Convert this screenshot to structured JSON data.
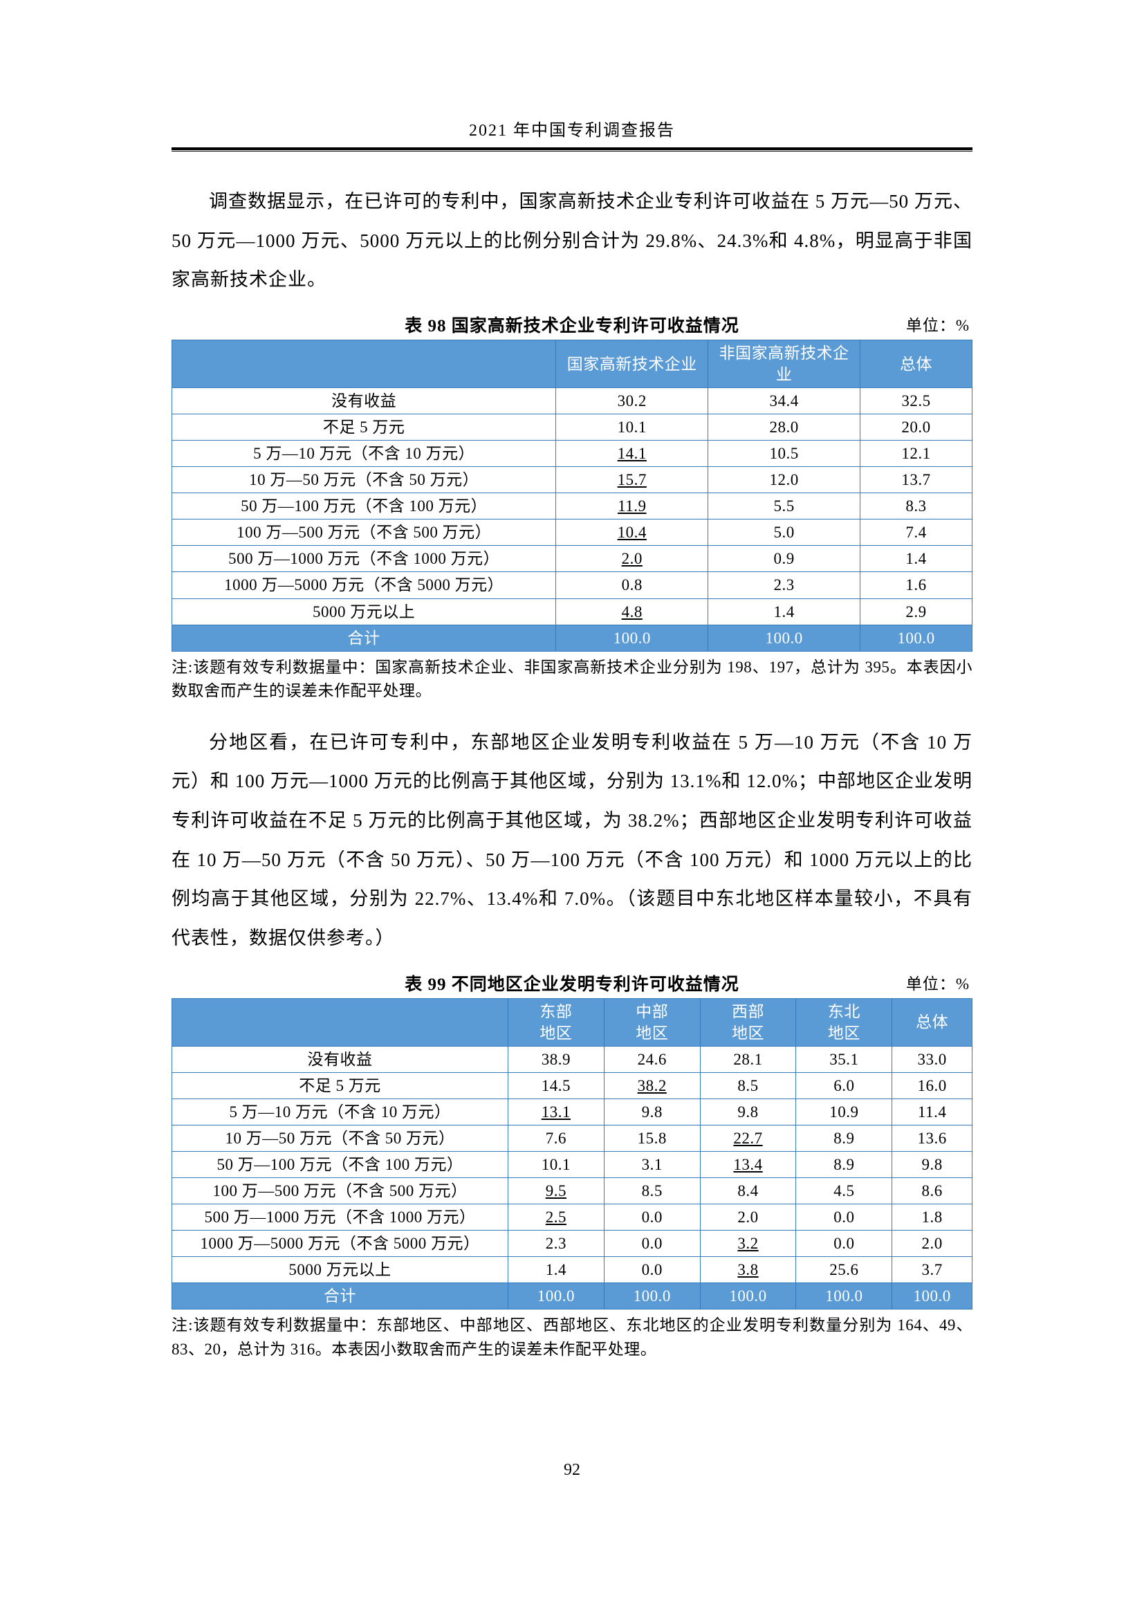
{
  "header": {
    "title": "2021 年中国专利调查报告"
  },
  "para1": "调查数据显示，在已许可的专利中，国家高新技术企业专利许可收益在 5 万元—50 万元、50 万元—1000 万元、5000 万元以上的比例分别合计为 29.8%、24.3%和 4.8%，明显高于非国家高新技术企业。",
  "table98": {
    "caption": "表 98  国家高新技术企业专利许可收益情况",
    "unit": "单位：%",
    "columns": [
      "",
      "国家高新技术企业",
      "非国家高新技术企业",
      "总体"
    ],
    "row_labels": [
      "没有收益",
      "不足 5 万元",
      "5 万—10 万元（不含 10 万元）",
      "10 万—50 万元（不含 50 万元）",
      "50 万—100 万元（不含 100 万元）",
      "100 万—500 万元（不含 500 万元）",
      "500 万—1000 万元（不含 1000 万元）",
      "1000 万—5000 万元（不含 5000 万元）",
      "5000 万元以上",
      "合计"
    ],
    "rows": [
      [
        {
          "v": "30.2"
        },
        {
          "v": "34.4"
        },
        {
          "v": "32.5"
        }
      ],
      [
        {
          "v": "10.1"
        },
        {
          "v": "28.0"
        },
        {
          "v": "20.0"
        }
      ],
      [
        {
          "v": "14.1",
          "u": true
        },
        {
          "v": "10.5"
        },
        {
          "v": "12.1"
        }
      ],
      [
        {
          "v": "15.7",
          "u": true
        },
        {
          "v": "12.0"
        },
        {
          "v": "13.7"
        }
      ],
      [
        {
          "v": "11.9",
          "u": true
        },
        {
          "v": "5.5"
        },
        {
          "v": "8.3"
        }
      ],
      [
        {
          "v": "10.4",
          "u": true
        },
        {
          "v": "5.0"
        },
        {
          "v": "7.4"
        }
      ],
      [
        {
          "v": "2.0",
          "u": true
        },
        {
          "v": "0.9"
        },
        {
          "v": "1.4"
        }
      ],
      [
        {
          "v": "0.8"
        },
        {
          "v": "2.3"
        },
        {
          "v": "1.6"
        }
      ],
      [
        {
          "v": "4.8",
          "u": true
        },
        {
          "v": "1.4"
        },
        {
          "v": "2.9"
        }
      ],
      [
        {
          "v": "100.0"
        },
        {
          "v": "100.0"
        },
        {
          "v": "100.0"
        }
      ]
    ],
    "note": "注:该题有效专利数据量中：国家高新技术企业、非国家高新技术企业分别为 198、197，总计为 395。本表因小数取舍而产生的误差未作配平处理。"
  },
  "para2": "分地区看，在已许可专利中，东部地区企业发明专利收益在 5 万—10 万元（不含 10 万元）和 100 万元—1000 万元的比例高于其他区域，分别为 13.1%和 12.0%；中部地区企业发明专利许可收益在不足 5 万元的比例高于其他区域，为 38.2%；西部地区企业发明专利许可收益在 10 万—50 万元（不含 50 万元）、50 万—100 万元（不含 100 万元）和 1000 万元以上的比例均高于其他区域，分别为 22.7%、13.4%和 7.0%。（该题目中东北地区样本量较小，不具有代表性，数据仅供参考。）",
  "table99": {
    "caption": "表 99  不同地区企业发明专利许可收益情况",
    "unit": "单位：%",
    "columns": [
      "",
      "东部\n地区",
      "中部\n地区",
      "西部\n地区",
      "东北\n地区",
      "总体"
    ],
    "row_labels": [
      "没有收益",
      "不足 5 万元",
      "5 万—10 万元（不含 10 万元）",
      "10 万—50 万元（不含 50 万元）",
      "50 万—100 万元（不含 100 万元）",
      "100 万—500 万元（不含 500 万元）",
      "500 万—1000 万元（不含 1000 万元）",
      "1000 万—5000 万元（不含 5000 万元）",
      "5000 万元以上",
      "合计"
    ],
    "rows": [
      [
        {
          "v": "38.9"
        },
        {
          "v": "24.6"
        },
        {
          "v": "28.1"
        },
        {
          "v": "35.1"
        },
        {
          "v": "33.0"
        }
      ],
      [
        {
          "v": "14.5"
        },
        {
          "v": "38.2",
          "u": true
        },
        {
          "v": "8.5"
        },
        {
          "v": "6.0"
        },
        {
          "v": "16.0"
        }
      ],
      [
        {
          "v": "13.1",
          "u": true
        },
        {
          "v": "9.8"
        },
        {
          "v": "9.8"
        },
        {
          "v": "10.9"
        },
        {
          "v": "11.4"
        }
      ],
      [
        {
          "v": "7.6"
        },
        {
          "v": "15.8"
        },
        {
          "v": "22.7",
          "u": true
        },
        {
          "v": "8.9"
        },
        {
          "v": "13.6"
        }
      ],
      [
        {
          "v": "10.1"
        },
        {
          "v": "3.1"
        },
        {
          "v": "13.4",
          "u": true
        },
        {
          "v": "8.9"
        },
        {
          "v": "9.8"
        }
      ],
      [
        {
          "v": "9.5",
          "u": true
        },
        {
          "v": "8.5"
        },
        {
          "v": "8.4"
        },
        {
          "v": "4.5"
        },
        {
          "v": "8.6"
        }
      ],
      [
        {
          "v": "2.5",
          "u": true
        },
        {
          "v": "0.0"
        },
        {
          "v": "2.0"
        },
        {
          "v": "0.0"
        },
        {
          "v": "1.8"
        }
      ],
      [
        {
          "v": "2.3"
        },
        {
          "v": "0.0"
        },
        {
          "v": "3.2",
          "u": true
        },
        {
          "v": "0.0"
        },
        {
          "v": "2.0"
        }
      ],
      [
        {
          "v": "1.4"
        },
        {
          "v": "0.0"
        },
        {
          "v": "3.8",
          "u": true
        },
        {
          "v": "25.6"
        },
        {
          "v": "3.7"
        }
      ],
      [
        {
          "v": "100.0"
        },
        {
          "v": "100.0"
        },
        {
          "v": "100.0"
        },
        {
          "v": "100.0"
        },
        {
          "v": "100.0"
        }
      ]
    ],
    "note": "注:该题有效专利数据量中：东部地区、中部地区、西部地区、东北地区的企业发明专利数量分别为 164、49、83、20，总计为 316。本表因小数取舍而产生的误差未作配平处理。"
  },
  "page_number": "92",
  "col_widths": {
    "t98": [
      "48%",
      "19%",
      "19%",
      "14%"
    ],
    "t99": [
      "42%",
      "12%",
      "12%",
      "12%",
      "12%",
      "10%"
    ]
  }
}
